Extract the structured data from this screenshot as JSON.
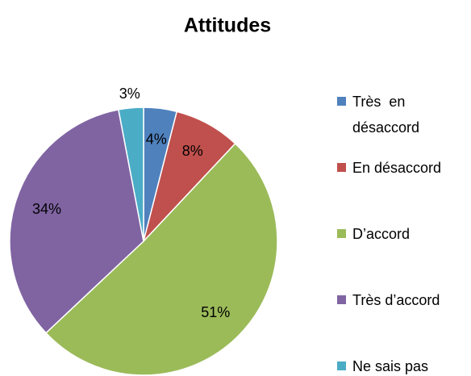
{
  "chart_data": {
    "type": "pie",
    "title": "Attitudes",
    "categories": [
      "Très  en désaccord",
      "En désaccord",
      "D’accord",
      "Très d’accord",
      "Ne sais pas"
    ],
    "values": [
      4,
      8,
      51,
      34,
      3
    ],
    "value_labels": [
      "4%",
      "8%",
      "51%",
      "34%",
      "3%"
    ],
    "colors": [
      "#4f81bd",
      "#c0504d",
      "#9bbb59",
      "#8064a2",
      "#4bacc6"
    ],
    "legend": "right"
  }
}
